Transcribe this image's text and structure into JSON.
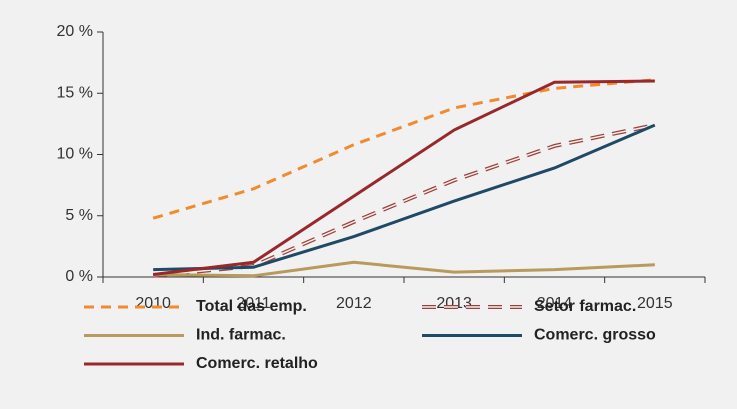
{
  "chart_data": {
    "type": "line",
    "categories": [
      "2010",
      "2011",
      "2012",
      "2013",
      "2014",
      "2015"
    ],
    "series": [
      {
        "name": "Total das emp.",
        "color": "#f28a2e",
        "dashed": true,
        "values": [
          4.8,
          7.2,
          10.8,
          13.8,
          15.4,
          16.1
        ]
      },
      {
        "name": "Setor farmac.",
        "color": "#a0403a",
        "dashed": true,
        "outline": true,
        "values": [
          0.1,
          0.9,
          4.5,
          7.9,
          10.7,
          12.4
        ]
      },
      {
        "name": "Ind. farmac.",
        "color": "#b89a5c",
        "values": [
          0.2,
          0.1,
          1.2,
          0.4,
          0.6,
          1.0
        ]
      },
      {
        "name": "Comerc. grosso",
        "color": "#1f4a66",
        "values": [
          0.6,
          0.8,
          3.3,
          6.2,
          8.9,
          12.4
        ]
      },
      {
        "name": "Comerc. retalho",
        "color": "#98282b",
        "values": [
          0.2,
          1.2,
          6.6,
          12.0,
          15.9,
          16.0
        ]
      }
    ],
    "ylim": [
      0,
      20
    ],
    "yticks": [
      {
        "value": 0,
        "label": "0 %"
      },
      {
        "value": 5,
        "label": "5 %"
      },
      {
        "value": 10,
        "label": "10 %"
      },
      {
        "value": 15,
        "label": "15 %"
      },
      {
        "value": 20,
        "label": "20 %"
      }
    ],
    "legend": "bottom"
  }
}
